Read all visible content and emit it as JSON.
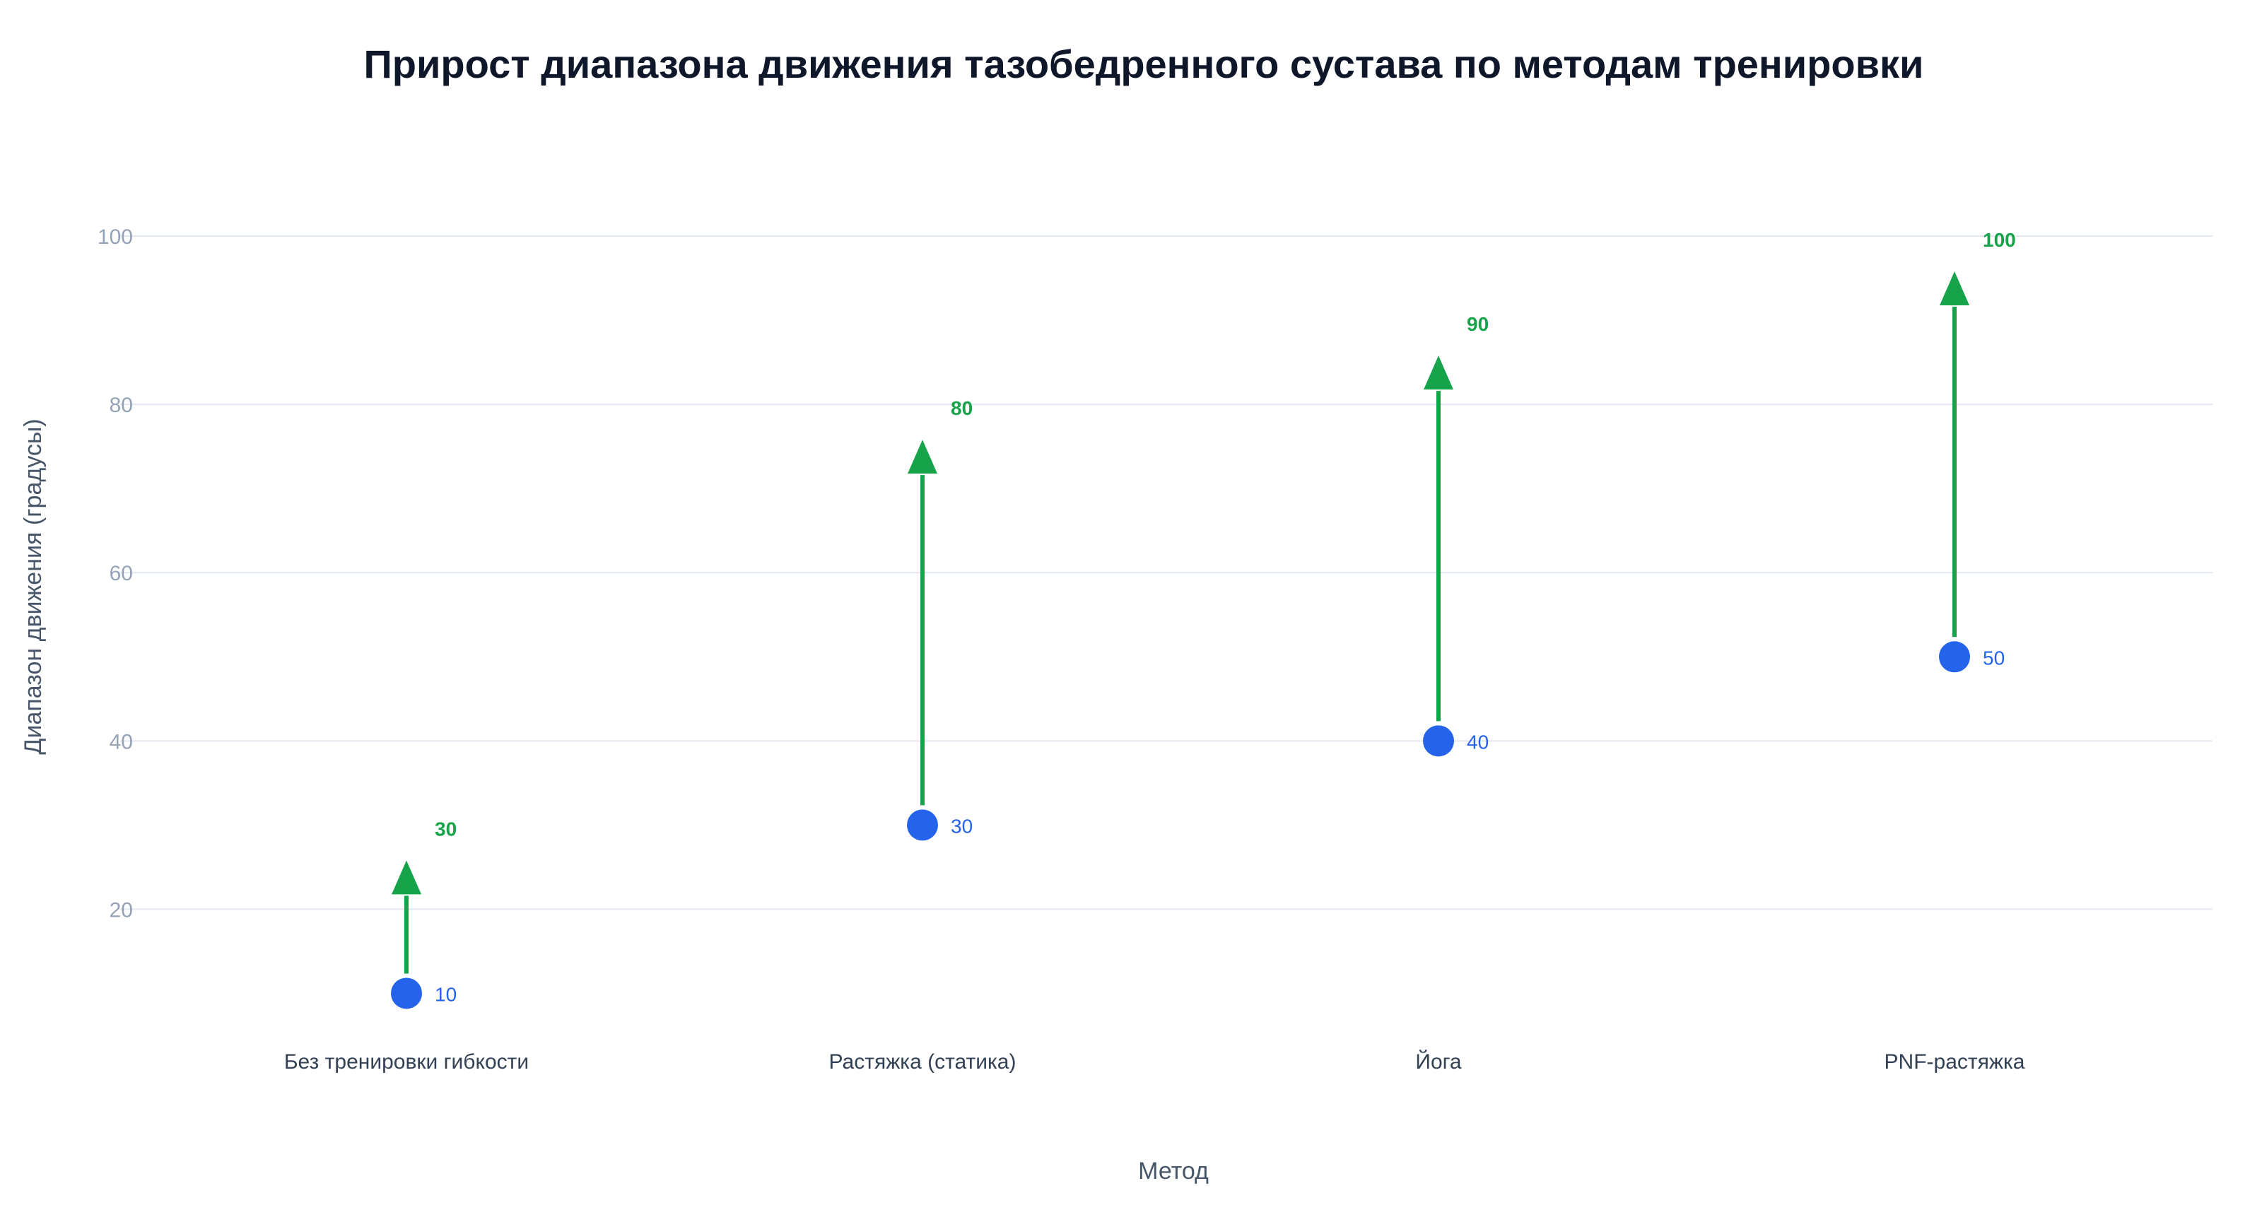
{
  "chart_data": {
    "type": "dumbbell-arrow",
    "title": "Прирост диапазона движения тазобедренного сустава по методам тренировки",
    "xlabel": "Метод",
    "ylabel": "Диапазон движения (градусы)",
    "categories": [
      "Без тренировки гибкости",
      "Растяжка (статика)",
      "Йога",
      "PNF-растяжка"
    ],
    "start_values": [
      10,
      30,
      40,
      50
    ],
    "end_values": [
      30,
      80,
      90,
      100
    ],
    "start_labels": [
      "10",
      "30",
      "40",
      "50"
    ],
    "end_labels": [
      "30",
      "80",
      "90",
      "100"
    ],
    "ylim": [
      5,
      110
    ],
    "yticks": [
      20,
      40,
      60,
      80,
      100
    ],
    "ytick_labels": [
      "20",
      "40",
      "60",
      "80",
      "100"
    ],
    "grid": true,
    "legend": "none",
    "colors": {
      "start_marker": "#2563eb",
      "start_label": "#2563eb",
      "arrow": "#16a34a",
      "end_label": "#16a34a",
      "grid": "#e2e8f0",
      "tick_text": "#94a3b8",
      "axis_title_text": "#475569",
      "category_text": "#334155",
      "title_text": "#0f172a"
    }
  }
}
